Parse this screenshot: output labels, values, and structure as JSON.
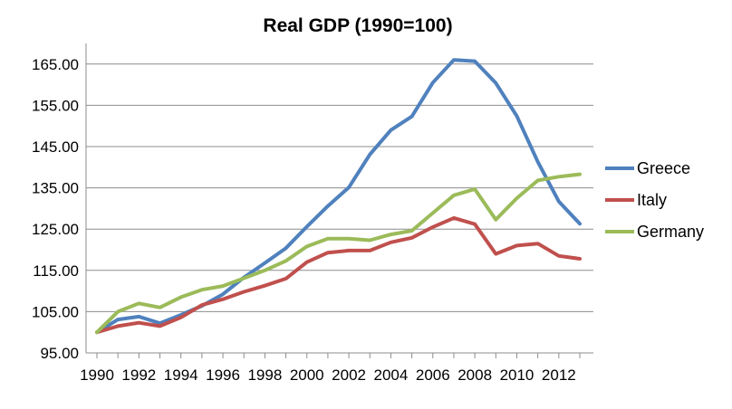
{
  "chart_data": {
    "type": "line",
    "title": "Real GDP (1990=100)",
    "xlabel": "",
    "ylabel": "",
    "ylim": [
      95,
      170
    ],
    "yticks": [
      "95.00",
      "105.00",
      "115.00",
      "125.00",
      "135.00",
      "145.00",
      "155.00",
      "165.00"
    ],
    "ytick_values": [
      95,
      105,
      115,
      125,
      135,
      145,
      155,
      165
    ],
    "xtick_labels": [
      "1990",
      "1992",
      "1994",
      "1996",
      "1998",
      "2000",
      "2002",
      "2004",
      "2006",
      "2008",
      "2010",
      "2012"
    ],
    "x": [
      1990,
      1991,
      1992,
      1993,
      1994,
      1995,
      1996,
      1997,
      1998,
      1999,
      2000,
      2001,
      2002,
      2003,
      2004,
      2005,
      2006,
      2007,
      2008,
      2009,
      2010,
      2011,
      2012,
      2013
    ],
    "grid": true,
    "legend_position": "right",
    "series": [
      {
        "name": "Greece",
        "color": "#4F81BD",
        "values": [
          100,
          103.1,
          103.8,
          102.2,
          104.2,
          106.4,
          109.2,
          113.3,
          116.8,
          120.4,
          125.6,
          130.6,
          135.1,
          143.1,
          149.0,
          152.3,
          160.5,
          166.0,
          165.7,
          160.4,
          152.4,
          141.3,
          131.7,
          126.3
        ]
      },
      {
        "name": "Italy",
        "color": "#C0504D",
        "values": [
          100,
          101.5,
          102.3,
          101.5,
          103.6,
          106.6,
          108.0,
          109.8,
          111.3,
          113.0,
          117.0,
          119.3,
          119.8,
          119.8,
          121.8,
          122.9,
          125.5,
          127.7,
          126.2,
          119.0,
          121.0,
          121.5,
          118.5,
          117.8
        ]
      },
      {
        "name": "Germany",
        "color": "#9BBB59",
        "values": [
          100,
          105.0,
          107.0,
          106.0,
          108.5,
          110.3,
          111.2,
          113.1,
          115.0,
          117.3,
          120.8,
          122.7,
          122.7,
          122.3,
          123.7,
          124.6,
          128.9,
          133.2,
          134.7,
          127.3,
          132.5,
          136.8,
          137.7,
          138.3
        ]
      }
    ]
  }
}
